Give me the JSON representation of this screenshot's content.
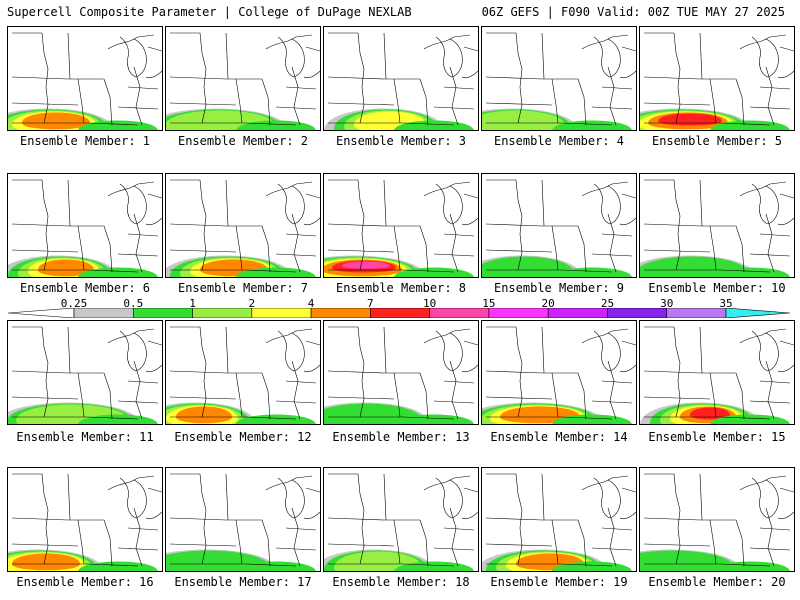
{
  "header": {
    "title": "Supercell Composite Parameter | College of DuPage NEXLAB",
    "run_info": "06Z GEFS | F090 Valid: 00Z TUE MAY 27 2025"
  },
  "label_prefix": "Ensemble Member: ",
  "members": [
    {
      "id": 1,
      "label": "Ensemble Member: 1",
      "max_level": 5
    },
    {
      "id": 2,
      "label": "Ensemble Member: 2",
      "max_level": 3
    },
    {
      "id": 3,
      "label": "Ensemble Member: 3",
      "max_level": 4
    },
    {
      "id": 4,
      "label": "Ensemble Member: 4",
      "max_level": 3
    },
    {
      "id": 5,
      "label": "Ensemble Member: 5",
      "max_level": 6
    },
    {
      "id": 6,
      "label": "Ensemble Member: 6",
      "max_level": 5
    },
    {
      "id": 7,
      "label": "Ensemble Member: 7",
      "max_level": 5
    },
    {
      "id": 8,
      "label": "Ensemble Member: 8",
      "max_level": 7
    },
    {
      "id": 9,
      "label": "Ensemble Member: 9",
      "max_level": 2
    },
    {
      "id": 10,
      "label": "Ensemble Member: 10",
      "max_level": 2
    },
    {
      "id": 11,
      "label": "Ensemble Member: 11",
      "max_level": 3
    },
    {
      "id": 12,
      "label": "Ensemble Member: 12",
      "max_level": 5
    },
    {
      "id": 13,
      "label": "Ensemble Member: 13",
      "max_level": 2
    },
    {
      "id": 14,
      "label": "Ensemble Member: 14",
      "max_level": 5
    },
    {
      "id": 15,
      "label": "Ensemble Member: 15",
      "max_level": 6
    },
    {
      "id": 16,
      "label": "Ensemble Member: 16",
      "max_level": 5
    },
    {
      "id": 17,
      "label": "Ensemble Member: 17",
      "max_level": 2
    },
    {
      "id": 18,
      "label": "Ensemble Member: 18",
      "max_level": 3
    },
    {
      "id": 19,
      "label": "Ensemble Member: 19",
      "max_level": 5
    },
    {
      "id": 20,
      "label": "Ensemble Member: 20",
      "max_level": 2
    }
  ],
  "colorbar": {
    "ticks": [
      "0.25",
      "0.5",
      "1",
      "2",
      "4",
      "7",
      "10",
      "15",
      "20",
      "25",
      "30",
      "35"
    ],
    "colors": [
      "#c8c8c8",
      "#33dd33",
      "#99ee44",
      "#ffff33",
      "#ff8800",
      "#ff2020",
      "#ff44aa",
      "#ff33ff",
      "#cc22ff",
      "#8822ee",
      "#bb77ee",
      "#33eeee"
    ]
  }
}
